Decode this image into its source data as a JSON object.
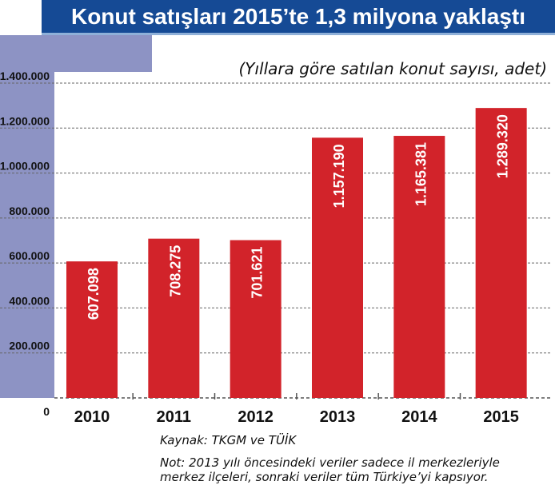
{
  "header": {
    "title": "Konut satışları 2015’te 1,3 milyona yaklaştı",
    "subtitle": "(Yıllara göre satılan konut sayısı, adet)"
  },
  "footer": {
    "source": "Kaynak: TKGM ve TÜİK",
    "note_line1": "Not: 2013 yılı öncesindeki veriler sadece il merkezleriyle",
    "note_line2": "merkez ilçeleri, sonraki veriler tüm Türkiye’yi kapsıyor."
  },
  "colors": {
    "bar": "#d2232a",
    "title_bar": "#154a95",
    "panel": "#8d93c4",
    "grid": "#666666"
  },
  "chart_data": {
    "type": "bar",
    "title": "Konut satışları 2015’te 1,3 milyona yaklaştı",
    "subtitle": "(Yıllara göre satılan konut sayısı, adet)",
    "xlabel": "",
    "ylabel": "",
    "categories": [
      "2010",
      "2011",
      "2012",
      "2013",
      "2014",
      "2015"
    ],
    "values": [
      607098,
      708275,
      701621,
      1157190,
      1165381,
      1289320
    ],
    "value_labels": [
      "607.098",
      "708.275",
      "701.621",
      "1.157.190",
      "1.165.381",
      "1.289.320"
    ],
    "ylim": [
      0,
      1400000
    ],
    "yticks": [
      0,
      200000,
      400000,
      600000,
      800000,
      1000000,
      1200000,
      1400000
    ],
    "ytick_labels": [
      "0",
      "200.000",
      "400.000",
      "600.000",
      "800.000",
      "1.000.000",
      "1.200.000",
      "1.400.000"
    ],
    "grid": true,
    "grid_style": "dashed",
    "legend": "none"
  }
}
